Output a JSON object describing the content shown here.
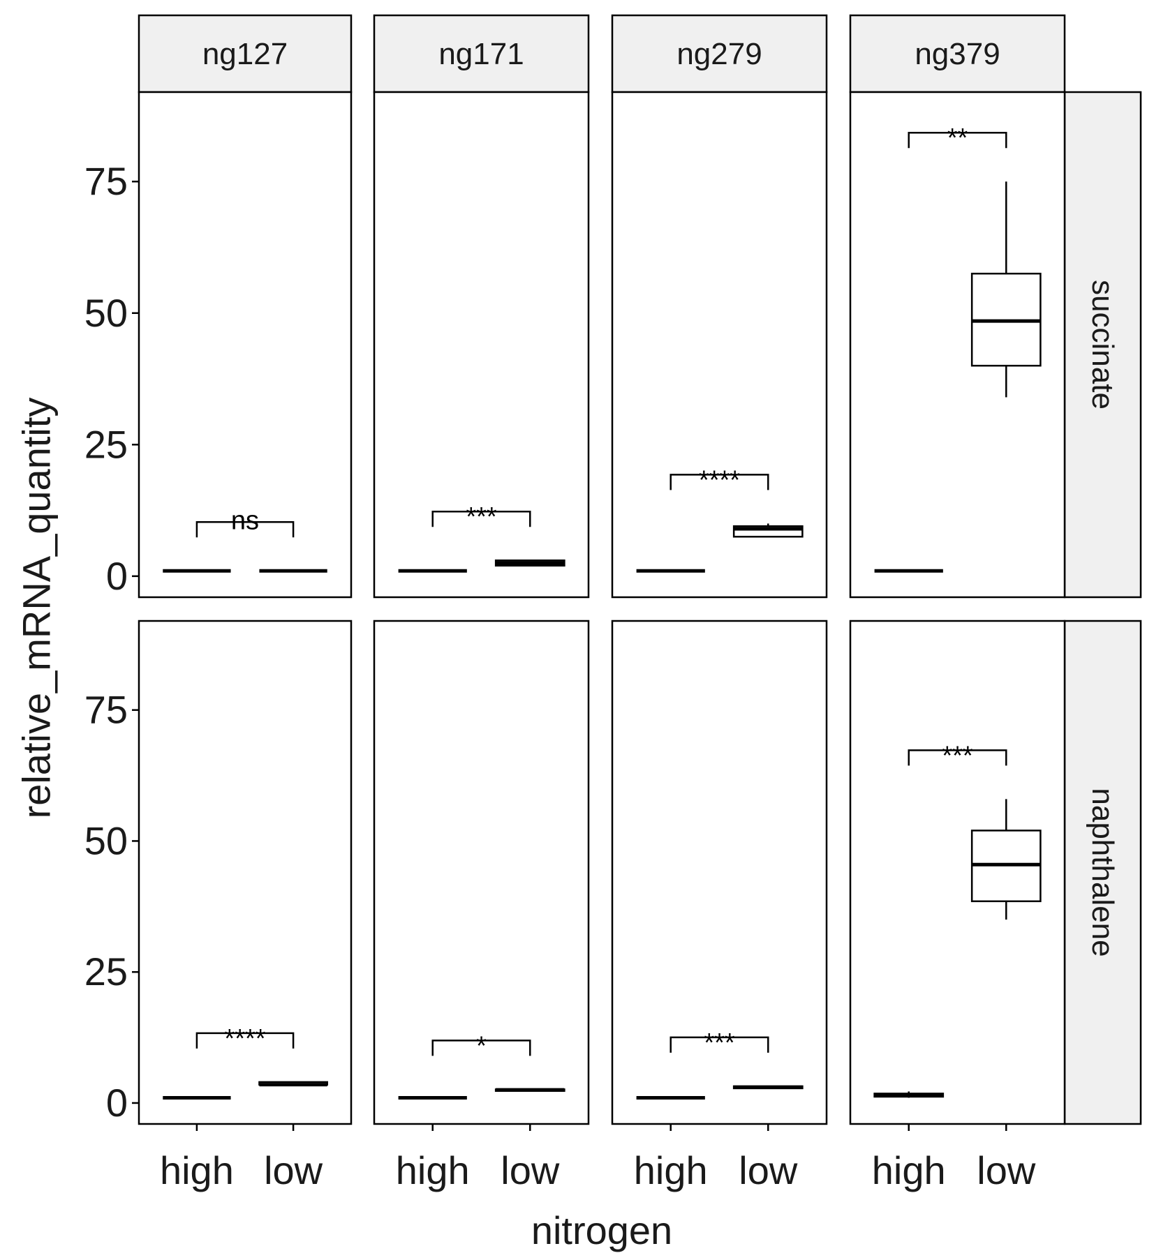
{
  "chart_data": {
    "type": "box",
    "xlabel": "nitrogen",
    "ylabel": "relative_mRNA_quantity",
    "ylim": [
      -4,
      92
    ],
    "y_ticks": [
      0,
      25,
      50,
      75
    ],
    "categories": [
      "high",
      "low"
    ],
    "column_facets": [
      "ng127",
      "ng171",
      "ng279",
      "ng379"
    ],
    "row_facets": [
      "succinate",
      "naphthalene"
    ],
    "panels": [
      {
        "row": "succinate",
        "col": "ng127",
        "significance": "ns",
        "boxes": [
          {
            "category": "high",
            "min": 1,
            "q1": 1,
            "median": 1,
            "q3": 1,
            "max": 1
          },
          {
            "category": "low",
            "min": 1,
            "q1": 1,
            "median": 1,
            "q3": 1,
            "max": 1
          }
        ]
      },
      {
        "row": "succinate",
        "col": "ng171",
        "significance": "***",
        "boxes": [
          {
            "category": "high",
            "min": 1,
            "q1": 1,
            "median": 1,
            "q3": 1,
            "max": 1
          },
          {
            "category": "low",
            "min": 2,
            "q1": 2,
            "median": 2.5,
            "q3": 3,
            "max": 3
          }
        ]
      },
      {
        "row": "succinate",
        "col": "ng279",
        "significance": "****",
        "boxes": [
          {
            "category": "high",
            "min": 1,
            "q1": 1,
            "median": 1,
            "q3": 1,
            "max": 1
          },
          {
            "category": "low",
            "min": 7.5,
            "q1": 7.5,
            "median": 9,
            "q3": 9.5,
            "max": 10
          }
        ]
      },
      {
        "row": "succinate",
        "col": "ng379",
        "significance": "**",
        "boxes": [
          {
            "category": "high",
            "min": 1,
            "q1": 1,
            "median": 1,
            "q3": 1,
            "max": 1
          },
          {
            "category": "low",
            "min": 34,
            "q1": 40,
            "median": 48.5,
            "q3": 57.5,
            "max": 75
          }
        ]
      },
      {
        "row": "naphthalene",
        "col": "ng127",
        "significance": "****",
        "boxes": [
          {
            "category": "high",
            "min": 1,
            "q1": 1,
            "median": 1,
            "q3": 1,
            "max": 1
          },
          {
            "category": "low",
            "min": 3.5,
            "q1": 3.5,
            "median": 3.5,
            "q3": 4,
            "max": 4
          }
        ]
      },
      {
        "row": "naphthalene",
        "col": "ng171",
        "significance": "*",
        "boxes": [
          {
            "category": "high",
            "min": 1,
            "q1": 1,
            "median": 1,
            "q3": 1,
            "max": 1
          },
          {
            "category": "low",
            "min": 2.3,
            "q1": 2.3,
            "median": 2.5,
            "q3": 2.6,
            "max": 2.6
          }
        ]
      },
      {
        "row": "naphthalene",
        "col": "ng279",
        "significance": "***",
        "boxes": [
          {
            "category": "high",
            "min": 1,
            "q1": 1,
            "median": 1,
            "q3": 1,
            "max": 1
          },
          {
            "category": "low",
            "min": 2.8,
            "q1": 2.8,
            "median": 3,
            "q3": 3.2,
            "max": 3.2
          }
        ]
      },
      {
        "row": "naphthalene",
        "col": "ng379",
        "significance": "***",
        "boxes": [
          {
            "category": "high",
            "min": 1,
            "q1": 1.2,
            "median": 1.5,
            "q3": 1.8,
            "max": 2.2
          },
          {
            "category": "low",
            "min": 35,
            "q1": 38.5,
            "median": 45.5,
            "q3": 52,
            "max": 58
          }
        ]
      }
    ]
  }
}
